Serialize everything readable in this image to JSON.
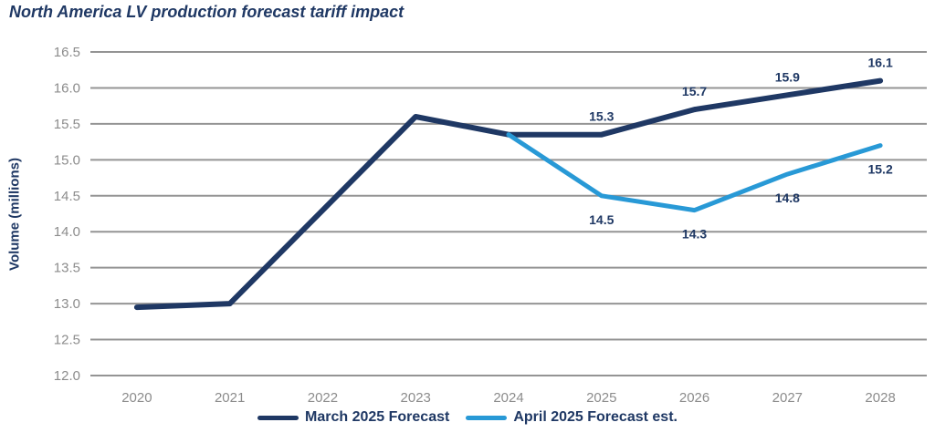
{
  "title": "North America LV production forecast tariff impact",
  "colors": {
    "navy_line": "#1F3864",
    "light_blue_line": "#2899D6",
    "gridline": "#949494",
    "tick_text": "#8C8C8C",
    "label_text": "#1F3864",
    "title_text": "#1F3864",
    "background": "#FFFFFF"
  },
  "legend": {
    "items": [
      {
        "label": "March 2025 Forecast",
        "color": "#1F3864"
      },
      {
        "label": "April 2025 Forecast est.",
        "color": "#2899D6"
      }
    ]
  },
  "chart_data": {
    "type": "line",
    "title": "North America LV production forecast tariff impact",
    "xlabel": "",
    "ylabel": "Volume (millions)",
    "categories": [
      "2020",
      "2021",
      "2022",
      "2023",
      "2024",
      "2025",
      "2026",
      "2027",
      "2028"
    ],
    "ylim": [
      12.0,
      16.5
    ],
    "ytick_step": 0.5,
    "grid": "horizontal-gridlines",
    "legend_position": "bottom",
    "series": [
      {
        "name": "March 2025 Forecast",
        "color": "#1F3864",
        "label_position": "above",
        "values": [
          12.95,
          13.0,
          14.3,
          15.6,
          15.35,
          15.35,
          15.7,
          15.9,
          16.1
        ],
        "point_labels": [
          null,
          null,
          null,
          null,
          null,
          "15.3",
          "15.7",
          "15.9",
          "16.1"
        ]
      },
      {
        "name": "April 2025 Forecast est.",
        "color": "#2899D6",
        "label_position": "below",
        "values": [
          null,
          null,
          null,
          null,
          15.35,
          14.5,
          14.3,
          14.8,
          15.2
        ],
        "point_labels": [
          null,
          null,
          null,
          null,
          null,
          "14.5",
          "14.3",
          "14.8",
          "15.2"
        ]
      }
    ]
  }
}
